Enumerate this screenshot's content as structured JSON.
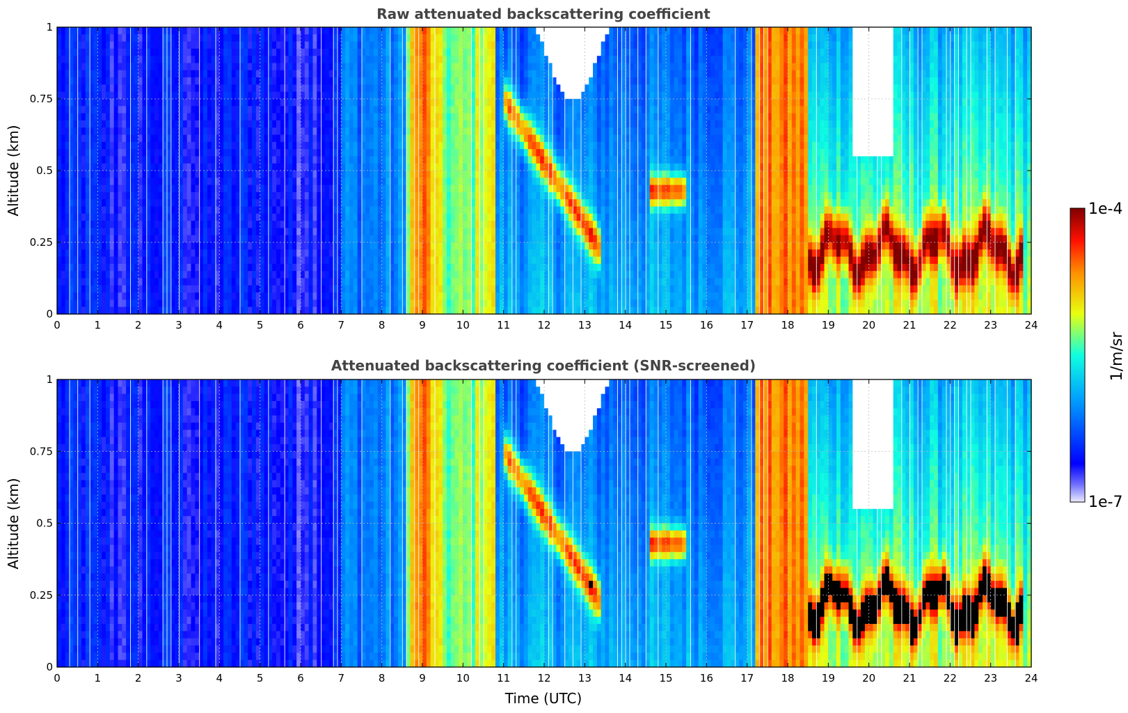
{
  "figure": {
    "xlabel": "Time (UTC)",
    "colorbar": {
      "label": "1/m/sr",
      "min_label": "1e-7",
      "max_label": "1e-4"
    }
  },
  "chart_data": [
    {
      "type": "heatmap",
      "title": "Raw attenuated backscattering coefficient",
      "xlabel": "",
      "ylabel": "Altitude (km)",
      "xlim": [
        0,
        24
      ],
      "ylim": [
        0,
        1
      ],
      "x_ticks": [
        "0",
        "1",
        "2",
        "3",
        "4",
        "5",
        "6",
        "7",
        "8",
        "9",
        "10",
        "11",
        "12",
        "13",
        "14",
        "15",
        "16",
        "17",
        "18",
        "19",
        "20",
        "21",
        "22",
        "23",
        "24"
      ],
      "y_ticks": [
        "0",
        "0.25",
        "0.5",
        "0.75",
        "1"
      ],
      "colorscale": "jet",
      "value_range": [
        "1e-7",
        "1e-4"
      ],
      "grid": true,
      "screened": false
    },
    {
      "type": "heatmap",
      "title": "Attenuated backscattering coefficient (SNR-screened)",
      "xlabel": "Time (UTC)",
      "ylabel": "Altitude (km)",
      "xlim": [
        0,
        24
      ],
      "ylim": [
        0,
        1
      ],
      "x_ticks": [
        "0",
        "1",
        "2",
        "3",
        "4",
        "5",
        "6",
        "7",
        "8",
        "9",
        "10",
        "11",
        "12",
        "13",
        "14",
        "15",
        "16",
        "17",
        "18",
        "19",
        "20",
        "21",
        "22",
        "23",
        "24"
      ],
      "y_ticks": [
        "0",
        "0.25",
        "0.5",
        "0.75",
        "1"
      ],
      "colorscale": "jet",
      "value_range": [
        "1e-7",
        "1e-4"
      ],
      "grid": true,
      "screened": true
    }
  ]
}
